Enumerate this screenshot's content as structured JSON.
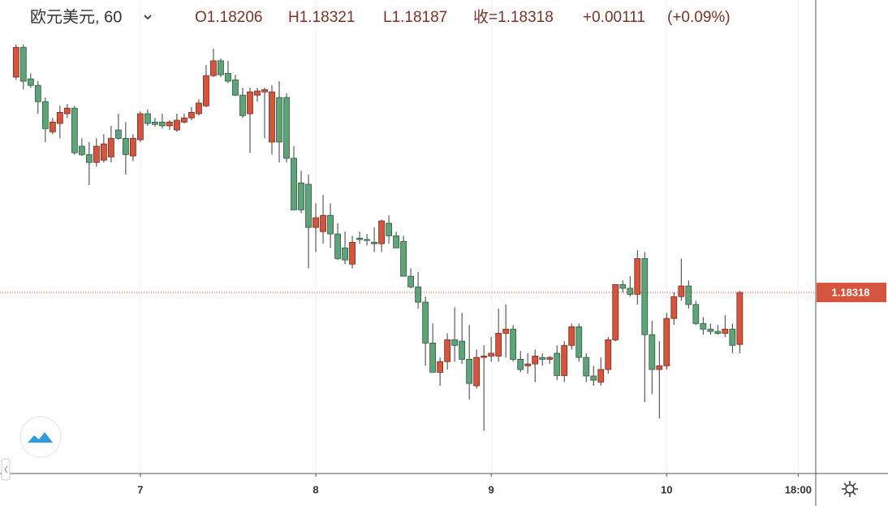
{
  "chart_data": {
    "type": "candlestick",
    "title": "欧元美元, 60",
    "ohlc_labels": [
      "O1.18206",
      "H1.18321",
      "L1.18187",
      "收=1.18318",
      "+0.00111",
      "(+0.09%)"
    ],
    "last_price": 1.18318,
    "up_color": "#d4553d",
    "down_color": "#5fa37a",
    "grid": true,
    "xlim": [
      -19.2,
      92.4
    ],
    "ylim": [
      1.17928,
      1.18878
    ],
    "xticks": [
      {
        "value": 0,
        "label": "7"
      },
      {
        "value": 24,
        "label": "8"
      },
      {
        "value": 48,
        "label": "9"
      },
      {
        "value": 72,
        "label": "10"
      },
      {
        "value": 90,
        "label": "18:00"
      }
    ],
    "x": [
      -17,
      -16,
      -15,
      -14,
      -13,
      -12,
      -11,
      -10,
      -9,
      -8,
      -7,
      -6,
      -5,
      -4,
      -3,
      -2,
      -1,
      0,
      1,
      2,
      3,
      4,
      5,
      6,
      7,
      8,
      9,
      10,
      11,
      12,
      13,
      14,
      15,
      16,
      17,
      18,
      19,
      20,
      21,
      22,
      23,
      24,
      25,
      26,
      27,
      28,
      29,
      30,
      31,
      32,
      33,
      34,
      35,
      36,
      37,
      38,
      39,
      40,
      41,
      42,
      43,
      44,
      45,
      46,
      47,
      48,
      49,
      50,
      51,
      52,
      53,
      54,
      55,
      56,
      57,
      58,
      59,
      60,
      61,
      62,
      63,
      64,
      65,
      66,
      67,
      68,
      69,
      70,
      71,
      72,
      73,
      74,
      75,
      76,
      77,
      78,
      79,
      80,
      81,
      82
    ],
    "open": [
      1.18782,
      1.18846,
      1.18778,
      1.18764,
      1.18729,
      1.18664,
      1.18682,
      1.18703,
      1.18715,
      1.18633,
      1.18615,
      1.18598,
      1.18603,
      1.1861,
      1.18668,
      1.1865,
      1.18612,
      1.18647,
      1.18703,
      1.18685,
      1.18685,
      1.18677,
      1.18668,
      1.18685,
      1.18694,
      1.18703,
      1.1872,
      1.18785,
      1.18817,
      1.1879,
      1.18776,
      1.18743,
      1.18703,
      1.18743,
      1.1875,
      1.18642,
      1.18738,
      1.18738,
      1.18607,
      1.18554,
      1.18551,
      1.18458,
      1.18449,
      1.18484,
      1.18444,
      1.18414,
      1.18379,
      1.18435,
      1.18432,
      1.18426,
      1.18423,
      1.18467,
      1.1844,
      1.18428,
      1.18353,
      1.1833,
      1.18297,
      1.18209,
      1.18146,
      1.18169,
      1.18216,
      1.18213,
      1.18174,
      1.18117,
      1.18178,
      1.18181,
      1.18181,
      1.1823,
      1.18239,
      1.18174,
      1.1816,
      1.18164,
      1.18178,
      1.18174,
      1.18187,
      1.18139,
      1.18204,
      1.18244,
      1.18178,
      1.18138,
      1.18125,
      1.18152,
      1.18216,
      1.18335,
      1.18327,
      1.18314,
      1.18391,
      1.18227,
      1.18152,
      1.1816,
      1.18262,
      1.18309,
      1.18332,
      1.18292,
      1.18251,
      1.18239,
      1.18234,
      1.1823,
      1.18239,
      1.18206
    ],
    "high": [
      1.18852,
      1.18852,
      1.1879,
      1.18773,
      1.18738,
      1.18694,
      1.1872,
      1.18724,
      1.1872,
      1.1865,
      1.18642,
      1.1865,
      1.18659,
      1.18677,
      1.18703,
      1.18685,
      1.18659,
      1.18708,
      1.18712,
      1.18694,
      1.18703,
      1.18689,
      1.18703,
      1.18703,
      1.18717,
      1.18734,
      1.18808,
      1.18843,
      1.18822,
      1.18817,
      1.18787,
      1.18759,
      1.18759,
      1.18759,
      1.18759,
      1.18764,
      1.18773,
      1.18747,
      1.18633,
      1.1858,
      1.18572,
      1.1851,
      1.18528,
      1.1851,
      1.18467,
      1.18449,
      1.1844,
      1.18449,
      1.18444,
      1.18458,
      1.18475,
      1.18484,
      1.18449,
      1.1844,
      1.1837,
      1.18362,
      1.18309,
      1.18251,
      1.18178,
      1.1823,
      1.18286,
      1.18274,
      1.18248,
      1.18195,
      1.18204,
      1.18222,
      1.18283,
      1.18292,
      1.18248,
      1.18192,
      1.18187,
      1.18195,
      1.18187,
      1.18181,
      1.18204,
      1.18213,
      1.18251,
      1.18251,
      1.18187,
      1.1816,
      1.18178,
      1.18222,
      1.18335,
      1.18344,
      1.18353,
      1.18409,
      1.18405,
      1.18257,
      1.18213,
      1.18274,
      1.18318,
      1.18391,
      1.18344,
      1.183,
      1.18265,
      1.18251,
      1.18248,
      1.18269,
      1.18251,
      1.18321
    ],
    "low": [
      1.18776,
      1.18755,
      1.18759,
      1.18703,
      1.18642,
      1.18659,
      1.1865,
      1.18694,
      1.18615,
      1.18612,
      1.18549,
      1.18589,
      1.18598,
      1.18598,
      1.18647,
      1.18572,
      1.18601,
      1.18642,
      1.18677,
      1.18675,
      1.18671,
      1.18668,
      1.18664,
      1.18682,
      1.18689,
      1.18699,
      1.18717,
      1.18782,
      1.18782,
      1.18769,
      1.18741,
      1.18694,
      1.18619,
      1.18729,
      1.1865,
      1.18615,
      1.18598,
      1.18598,
      1.18496,
      1.18489,
      1.1837,
      1.18405,
      1.18423,
      1.18414,
      1.18388,
      1.18379,
      1.1837,
      1.18423,
      1.18419,
      1.18405,
      1.18405,
      1.18423,
      1.18414,
      1.18353,
      1.18327,
      1.18283,
      1.1816,
      1.18146,
      1.18117,
      1.18152,
      1.18169,
      1.18164,
      1.18087,
      1.18111,
      1.1802,
      1.18169,
      1.18169,
      1.18178,
      1.18169,
      1.18146,
      1.18143,
      1.18125,
      1.1816,
      1.18164,
      1.18129,
      1.18125,
      1.18195,
      1.18169,
      1.18125,
      1.18117,
      1.18117,
      1.18143,
      1.18213,
      1.18318,
      1.18309,
      1.18292,
      1.18082,
      1.18099,
      1.18047,
      1.18152,
      1.18248,
      1.183,
      1.18283,
      1.18248,
      1.18227,
      1.18227,
      1.18227,
      1.18222,
      1.18187,
      1.18187
    ],
    "close": [
      1.18846,
      1.18773,
      1.18764,
      1.18729,
      1.18671,
      1.18685,
      1.18706,
      1.18715,
      1.18619,
      1.18615,
      1.18598,
      1.18633,
      1.18638,
      1.1865,
      1.1865,
      1.18615,
      1.1865,
      1.18703,
      1.18682,
      1.1868,
      1.18677,
      1.18685,
      1.18689,
      1.18694,
      1.18706,
      1.18726,
      1.18785,
      1.18817,
      1.18787,
      1.18773,
      1.18743,
      1.18699,
      1.1875,
      1.18752,
      1.18755,
      1.1875,
      1.18642,
      1.18607,
      1.18496,
      1.18496,
      1.18458,
      1.18479,
      1.18484,
      1.18444,
      1.18391,
      1.18388,
      1.18426,
      1.18432,
      1.1843,
      1.18423,
      1.18472,
      1.1844,
      1.18414,
      1.18353,
      1.1833,
      1.18297,
      1.18209,
      1.18146,
      1.18169,
      1.18216,
      1.18204,
      1.18174,
      1.18122,
      1.18178,
      1.18181,
      1.18187,
      1.1823,
      1.18239,
      1.18174,
      1.18152,
      1.18164,
      1.18181,
      1.18174,
      1.18178,
      1.18139,
      1.18204,
      1.18244,
      1.18178,
      1.18138,
      1.18129,
      1.18152,
      1.18216,
      1.18335,
      1.18327,
      1.18314,
      1.18391,
      1.18227,
      1.18152,
      1.1816,
      1.18262,
      1.18309,
      1.18332,
      1.18292,
      1.18251,
      1.18239,
      1.18234,
      1.1823,
      1.18239,
      1.18204,
      1.18318
    ]
  }
}
